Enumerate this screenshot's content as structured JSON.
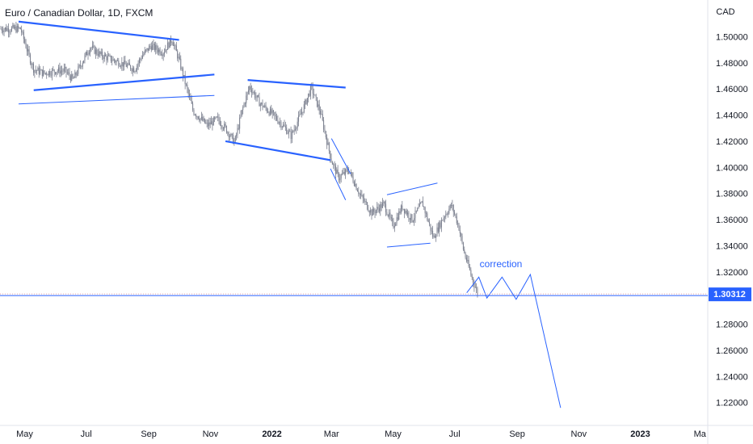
{
  "header": {
    "title": "Euro / Canadian Dollar, 1D, FXCM"
  },
  "price_axis": {
    "currency": "CAD",
    "current_price_label": "1.30312",
    "current_price_color": "#2962ff"
  },
  "annotation": {
    "text": "correction",
    "color": "#2962ff"
  },
  "colors": {
    "drawing": "#2962ff",
    "candle": "#7a7f8e",
    "axis_text": "#131722",
    "price_line": "#2962ff"
  },
  "chart_data": {
    "type": "candlestick",
    "title": "Euro / Canadian Dollar, 1D, FXCM",
    "ylabel": "CAD",
    "ylim": [
      1.205,
      1.52
    ],
    "yticks": [
      "1.50000",
      "1.48000",
      "1.46000",
      "1.44000",
      "1.42000",
      "1.40000",
      "1.38000",
      "1.36000",
      "1.34000",
      "1.32000",
      "1.30000",
      "1.28000",
      "1.26000",
      "1.24000",
      "1.22000"
    ],
    "xticks": [
      "May",
      "Jul",
      "Sep",
      "Nov",
      "2022",
      "Mar",
      "May",
      "Jul",
      "Sep",
      "Nov",
      "2023",
      "Ma"
    ],
    "last_price": 1.30312,
    "price_path": [
      [
        "2021-04-27",
        1.506
      ],
      [
        "2021-05-05",
        1.486
      ],
      [
        "2021-05-10",
        1.475
      ],
      [
        "2021-05-20",
        1.472
      ],
      [
        "2021-06-01",
        1.474
      ],
      [
        "2021-06-10",
        1.474
      ],
      [
        "2021-06-18",
        1.467
      ],
      [
        "2021-06-28",
        1.482
      ],
      [
        "2021-07-05",
        1.492
      ],
      [
        "2021-07-15",
        1.486
      ],
      [
        "2021-07-28",
        1.482
      ],
      [
        "2021-08-10",
        1.478
      ],
      [
        "2021-08-18",
        1.475
      ],
      [
        "2021-08-25",
        1.485
      ],
      [
        "2021-09-03",
        1.493
      ],
      [
        "2021-09-15",
        1.488
      ],
      [
        "2021-09-24",
        1.498
      ],
      [
        "2021-10-01",
        1.482
      ],
      [
        "2021-10-08",
        1.462
      ],
      [
        "2021-10-15",
        1.443
      ],
      [
        "2021-10-29",
        1.432
      ],
      [
        "2021-11-08",
        1.437
      ],
      [
        "2021-11-16",
        1.43
      ],
      [
        "2021-11-25",
        1.419
      ],
      [
        "2021-12-03",
        1.445
      ],
      [
        "2021-12-10",
        1.462
      ],
      [
        "2021-12-20",
        1.449
      ],
      [
        "2022-01-01",
        1.441
      ],
      [
        "2022-01-12",
        1.432
      ],
      [
        "2022-01-20",
        1.424
      ],
      [
        "2022-02-01",
        1.445
      ],
      [
        "2022-02-09",
        1.461
      ],
      [
        "2022-02-18",
        1.442
      ],
      [
        "2022-03-01",
        1.405
      ],
      [
        "2022-03-08",
        1.392
      ],
      [
        "2022-03-18",
        1.398
      ],
      [
        "2022-03-30",
        1.378
      ],
      [
        "2022-04-10",
        1.365
      ],
      [
        "2022-04-22",
        1.372
      ],
      [
        "2022-05-01",
        1.355
      ],
      [
        "2022-05-10",
        1.37
      ],
      [
        "2022-05-20",
        1.36
      ],
      [
        "2022-05-30",
        1.373
      ],
      [
        "2022-06-10",
        1.346
      ],
      [
        "2022-06-20",
        1.362
      ],
      [
        "2022-06-28",
        1.371
      ],
      [
        "2022-07-05",
        1.355
      ],
      [
        "2022-07-10",
        1.336
      ],
      [
        "2022-07-18",
        1.316
      ],
      [
        "2022-07-24",
        1.303
      ]
    ],
    "drawings": [
      {
        "name": "triangle-1-upper",
        "points": [
          [
            "2021-04-25",
            1.5115
          ],
          [
            "2021-10-01",
            1.4975
          ]
        ]
      },
      {
        "name": "triangle-1-lower",
        "points": [
          [
            "2021-05-10",
            1.459
          ],
          [
            "2021-11-05",
            1.471
          ]
        ]
      },
      {
        "name": "trend-line-long",
        "points": [
          [
            "2021-04-25",
            1.4485
          ],
          [
            "2021-11-05",
            1.455
          ]
        ]
      },
      {
        "name": "channel-2-upper",
        "points": [
          [
            "2021-12-08",
            1.4668
          ],
          [
            "2022-03-15",
            1.461
          ]
        ]
      },
      {
        "name": "channel-2-lower",
        "points": [
          [
            "2021-11-16",
            1.42
          ],
          [
            "2022-02-28",
            1.4055
          ]
        ]
      },
      {
        "name": "flag-upper",
        "points": [
          [
            "2022-03-01",
            1.422
          ],
          [
            "2022-03-20",
            1.395
          ]
        ]
      },
      {
        "name": "flag-lower",
        "points": [
          [
            "2022-02-28",
            1.399
          ],
          [
            "2022-03-15",
            1.375
          ]
        ]
      },
      {
        "name": "broadening-upper",
        "points": [
          [
            "2022-04-25",
            1.379
          ],
          [
            "2022-06-14",
            1.388
          ]
        ]
      },
      {
        "name": "broadening-lower",
        "points": [
          [
            "2022-04-25",
            1.339
          ],
          [
            "2022-06-07",
            1.342
          ]
        ]
      },
      {
        "name": "projection-path",
        "points": [
          [
            "2022-07-13",
            1.304
          ],
          [
            "2022-07-25",
            1.316
          ],
          [
            "2022-08-02",
            1.3
          ],
          [
            "2022-08-17",
            1.316
          ],
          [
            "2022-08-31",
            1.299
          ],
          [
            "2022-09-14",
            1.318
          ],
          [
            "2022-10-14",
            1.216
          ]
        ]
      }
    ],
    "grid": false,
    "legend": "none"
  }
}
